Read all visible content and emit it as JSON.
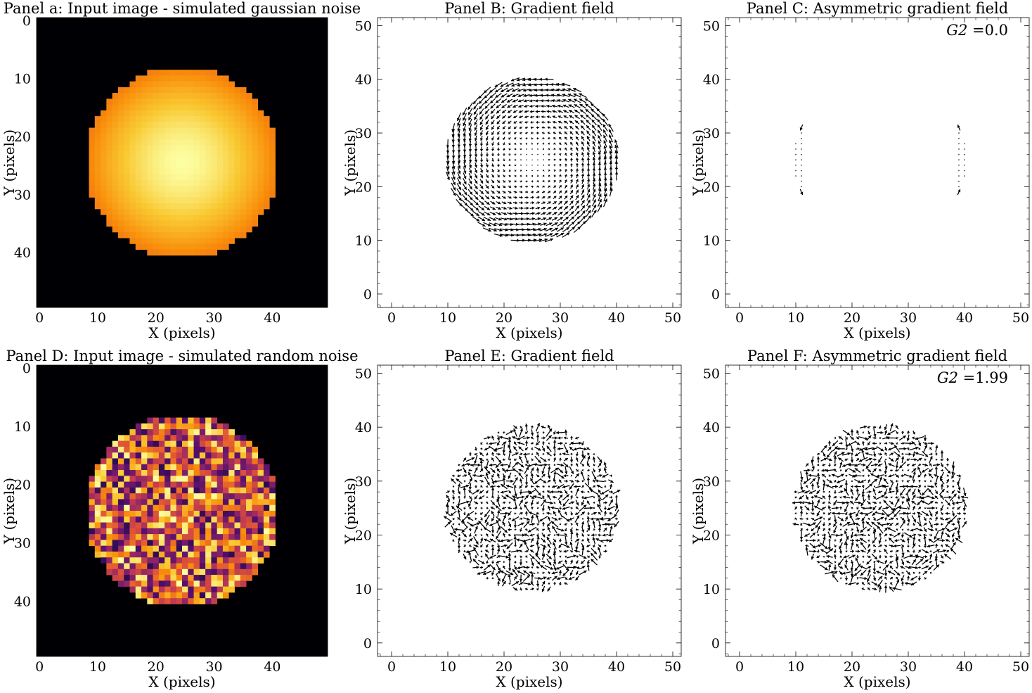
{
  "chart_data": [
    {
      "id": "a",
      "type": "heatmap",
      "title": "Panel a: Input image - simulated gaussian noise",
      "xlabel": "X (pixels)",
      "ylabel": "Y (pixels)",
      "xlim": [
        -0.5,
        49.5
      ],
      "ylim": [
        49.5,
        -0.5
      ],
      "xticks": [
        0,
        10,
        20,
        30,
        40
      ],
      "yticks": [
        0,
        10,
        20,
        30,
        40
      ],
      "image_size": 50,
      "circle": {
        "center": [
          25,
          25
        ],
        "radius": 16.5
      },
      "pattern": "smooth",
      "colormap": "inferno",
      "background": "#000004",
      "center_value": 1.0,
      "edge_value": 0.72
    },
    {
      "id": "B",
      "type": "quiver",
      "title": "Panel B: Gradient field",
      "xlabel": "X (pixels)",
      "ylabel": "Y (pixels)",
      "xlim": [
        -2.5,
        51.5
      ],
      "ylim": [
        -2.5,
        51.5
      ],
      "xticks": [
        0,
        10,
        20,
        30,
        40,
        50
      ],
      "yticks": [
        0,
        10,
        20,
        30,
        40,
        50
      ],
      "field": "radial_gradient",
      "region": {
        "center": [
          25,
          25
        ],
        "radius": 15.5
      },
      "annotation": ""
    },
    {
      "id": "C",
      "type": "quiver",
      "title": "Panel C: Asymmetric gradient field",
      "xlabel": "X (pixels)",
      "ylabel": "Y (pixels)",
      "xlim": [
        -2.5,
        51.5
      ],
      "ylim": [
        -2.5,
        51.5
      ],
      "xticks": [
        0,
        10,
        20,
        30,
        40,
        50
      ],
      "yticks": [
        0,
        10,
        20,
        30,
        40,
        50
      ],
      "field": "asymmetric_residual_edges",
      "region": {
        "center": [
          25,
          25
        ],
        "radius": 15.5
      },
      "annotation_var": "G2",
      "annotation_value": "=0.0"
    },
    {
      "id": "D",
      "type": "heatmap",
      "title": "Panel D: Input image - simulated random noise",
      "xlabel": "X (pixels)",
      "ylabel": "Y (pixels)",
      "xlim": [
        -0.5,
        49.5
      ],
      "ylim": [
        49.5,
        -0.5
      ],
      "xticks": [
        0,
        10,
        20,
        30,
        40
      ],
      "yticks": [
        0,
        10,
        20,
        30,
        40
      ],
      "image_size": 50,
      "circle": {
        "center": [
          25,
          25
        ],
        "radius": 16.5
      },
      "pattern": "random",
      "colormap": "inferno",
      "background": "#000004"
    },
    {
      "id": "E",
      "type": "quiver",
      "title": "Panel E: Gradient field",
      "xlabel": "X (pixels)",
      "ylabel": "Y (pixels)",
      "xlim": [
        -2.5,
        51.5
      ],
      "ylim": [
        -2.5,
        51.5
      ],
      "xticks": [
        0,
        10,
        20,
        30,
        40,
        50
      ],
      "yticks": [
        0,
        10,
        20,
        30,
        40,
        50
      ],
      "field": "random",
      "region": {
        "center": [
          25,
          25
        ],
        "radius": 15.5
      },
      "annotation": ""
    },
    {
      "id": "F",
      "type": "quiver",
      "title": "Panel F: Asymmetric gradient field",
      "xlabel": "X (pixels)",
      "ylabel": "Y (pixels)",
      "xlim": [
        -2.5,
        51.5
      ],
      "ylim": [
        -2.5,
        51.5
      ],
      "xticks": [
        0,
        10,
        20,
        30,
        40,
        50
      ],
      "yticks": [
        0,
        10,
        20,
        30,
        40,
        50
      ],
      "field": "random",
      "region": {
        "center": [
          25,
          25
        ],
        "radius": 15.5
      },
      "annotation_var": "G2",
      "annotation_value": "=1.99"
    }
  ]
}
